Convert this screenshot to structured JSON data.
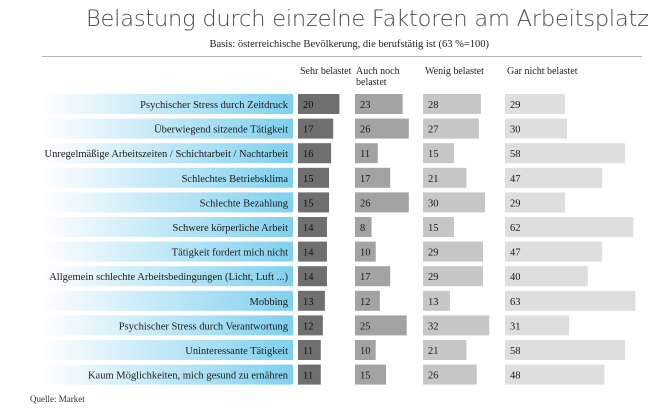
{
  "header": {
    "title": "Belastung durch einzelne Faktoren am Arbeitsplatz",
    "subtitle": "Basis: österreichische Bevölkerung, die berufstätig ist (63 %=100)"
  },
  "footer": {
    "source": "Quelle: Market"
  },
  "colors": {
    "label_gradient_start": "#ffffff",
    "label_gradient_end": "#7fd0ee",
    "series": [
      "#6f6f6f",
      "#a3a3a3",
      "#c6c6c6",
      "#dedede"
    ]
  },
  "chart_data": {
    "type": "bar",
    "orientation": "horizontal",
    "grouping": "side-by-side columns",
    "categories": [
      "Psychischer Stress durch Zeitdruck",
      "Überwiegend sitzende Tätigkeit",
      "Unregelmäßige Arbeitszeiten / Schichtarbeit / Nachtarbeit",
      "Schlechtes Betriebsklima",
      "Schlechte Bezahlung",
      "Schwere körperliche Arbeit",
      "Tätigkeit fordert mich nicht",
      "Allgemein schlechte Arbeitsbedingungen (Licht, Luft ...)",
      "Mobbing",
      "Psychischer Stress durch Verantwortung",
      "Uninteressante Tätigkeit",
      "Kaum Möglichkeiten, mich gesund zu ernähren"
    ],
    "series": [
      {
        "name": "Sehr belastet",
        "values": [
          20,
          17,
          16,
          15,
          15,
          14,
          14,
          14,
          13,
          12,
          11,
          11
        ]
      },
      {
        "name": "Auch noch belastet",
        "values": [
          23,
          26,
          11,
          17,
          26,
          8,
          10,
          17,
          12,
          25,
          10,
          15
        ]
      },
      {
        "name": "Wenig belastet",
        "values": [
          28,
          27,
          15,
          21,
          30,
          15,
          29,
          29,
          13,
          32,
          21,
          26
        ]
      },
      {
        "name": "Gar nicht belastet",
        "values": [
          29,
          30,
          58,
          47,
          29,
          62,
          47,
          40,
          63,
          31,
          58,
          48
        ]
      }
    ],
    "unit": "%",
    "legend": "column headers above each series",
    "grid": false
  }
}
